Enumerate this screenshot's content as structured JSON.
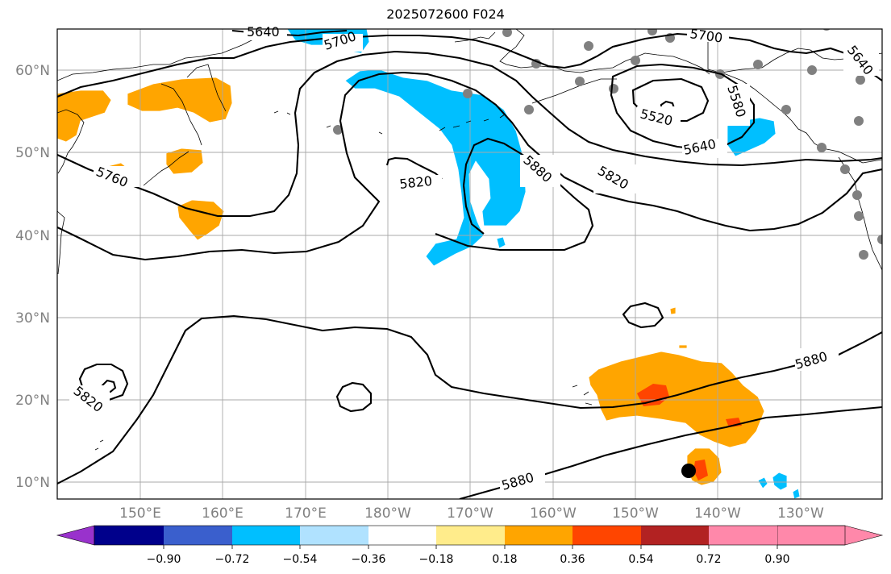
{
  "title": "2025072600 F024",
  "lon_ticks": [
    "150°E",
    "160°E",
    "170°E",
    "180°W",
    "170°W",
    "160°W",
    "150°W",
    "140°W",
    "130°W"
  ],
  "lat_ticks": [
    "60°N",
    "50°N",
    "40°N",
    "30°N",
    "20°N",
    "10°N"
  ],
  "contour_labels": [
    "5640",
    "5700",
    "5700",
    "5640",
    "5760",
    "5820",
    "5880",
    "5520",
    "5580",
    "5640",
    "5820",
    "5820",
    "5880",
    "5880"
  ],
  "colorbar": {
    "colors": [
      "#9932cc",
      "#00008b",
      "#3a5fcd",
      "#00bfff",
      "#b0e2ff",
      "#ffffff",
      "#ffec8b",
      "#ffa500",
      "#ff4500",
      "#b22222",
      "#ff88aa"
    ],
    "tick_labels": [
      "−0.90",
      "−0.72",
      "−0.54",
      "−0.36",
      "−0.18",
      "0.18",
      "0.36",
      "0.54",
      "0.72",
      "0.90"
    ]
  }
}
